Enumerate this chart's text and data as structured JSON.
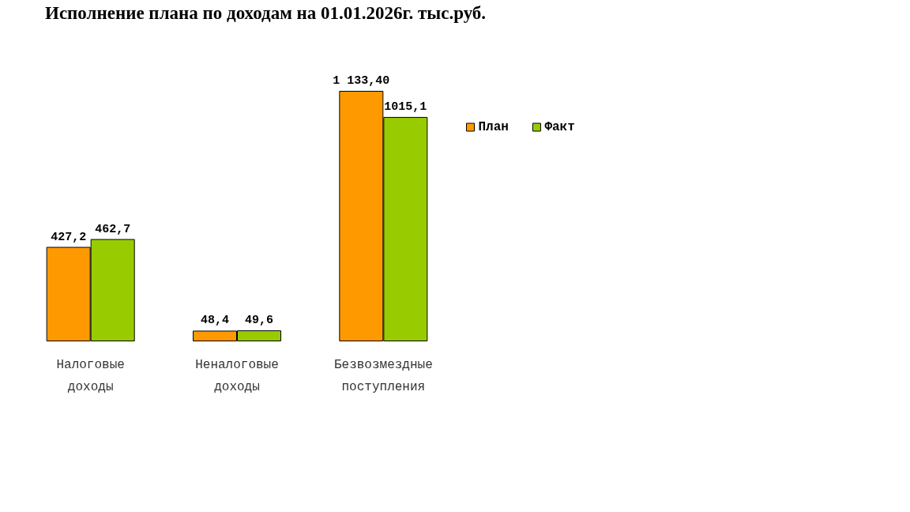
{
  "chart_data": {
    "type": "bar",
    "title": "Исполнение плана по доходам на 01.01.2026г. тыс.руб.",
    "categories": [
      "Налоговые\nдоходы",
      "Неналоговые\nдоходы",
      "Безвозмездные\nпоступления"
    ],
    "series": [
      {
        "name": "План",
        "color": "#ff9900",
        "values": [
          427.2,
          48.4,
          1133.4
        ],
        "value_labels": [
          "427,2",
          "48,4",
          "1 133,40"
        ]
      },
      {
        "name": "Факт",
        "color": "#99cc00",
        "values": [
          462.7,
          49.6,
          1015.1
        ],
        "value_labels": [
          "462,7",
          "49,6",
          "1015,1"
        ]
      }
    ],
    "legend": "top right"
  }
}
